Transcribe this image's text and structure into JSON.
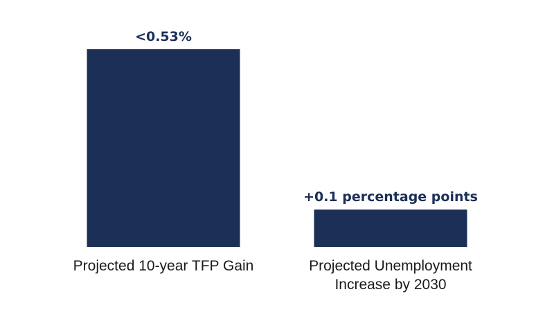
{
  "chart_data": {
    "type": "bar",
    "categories": [
      [
        "Projected 10-year TFP Gain"
      ],
      [
        "Projected Unemployment",
        "Increase by 2030"
      ]
    ],
    "values": [
      0.53,
      0.1
    ],
    "data_labels": [
      "<0.53%",
      "+0.1 percentage points"
    ],
    "title": "",
    "xlabel": "",
    "ylabel": "",
    "ylim": [
      0,
      0.53
    ],
    "grid": false,
    "axes_visible": false,
    "legend": "none",
    "colors": {
      "bar": "#1b2f57",
      "label": "#1b2f57",
      "category_text": "#1a1a1a",
      "background": "#ffffff"
    }
  }
}
